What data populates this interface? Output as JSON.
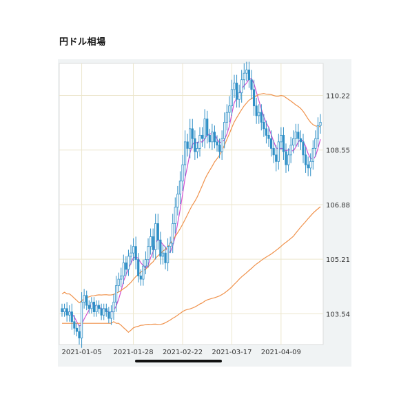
{
  "page": {
    "title": "円ドル相場"
  },
  "chart_data": {
    "type": "candlestick",
    "title": "円ドル相場",
    "xlabel": "",
    "ylabel": "",
    "y_ticks": [
      110.22,
      108.55,
      106.88,
      105.21,
      103.54
    ],
    "ylim": [
      102.6,
      111.2
    ],
    "x_tick_labels": [
      "2021-01-05",
      "2021-01-28",
      "2021-02-22",
      "2021-03-17",
      "2021-04-09"
    ],
    "x_tick_index": [
      8,
      29,
      49,
      69,
      89
    ],
    "n_points": 106,
    "grid": true,
    "colors": {
      "candle": "#2f8fc6",
      "sma_short": "#d04fd0",
      "sma_long": "#f0914a",
      "grid": "#ece6cc"
    },
    "series": [
      {
        "type": "candle",
        "close": [
          103.6,
          103.7,
          103.5,
          103.6,
          103.3,
          103.1,
          103.0,
          102.8,
          103.9,
          104.1,
          103.8,
          103.7,
          103.9,
          103.6,
          103.8,
          103.7,
          103.5,
          103.7,
          103.6,
          103.4,
          103.6,
          103.9,
          104.4,
          104.6,
          104.7,
          105.1,
          104.9,
          105.3,
          105.4,
          105.6,
          105.2,
          104.7,
          104.6,
          105.0,
          105.2,
          105.6,
          105.9,
          105.5,
          106.3,
          105.8,
          105.3,
          105.4,
          105.1,
          105.6,
          105.7,
          106.3,
          106.8,
          107.2,
          107.6,
          108.1,
          108.8,
          108.6,
          109.2,
          108.9,
          108.5,
          108.6,
          109.0,
          108.9,
          109.5,
          109.0,
          108.8,
          109.1,
          108.8,
          108.7,
          108.5,
          108.9,
          109.4,
          109.7,
          109.9,
          110.4,
          110.6,
          110.1,
          110.3,
          110.7,
          110.9,
          111.0,
          110.7,
          110.4,
          109.9,
          109.6,
          109.7,
          109.4,
          109.2,
          109.0,
          108.9,
          108.6,
          108.4,
          108.2,
          108.8,
          109.0,
          108.5,
          108.1,
          108.4,
          108.7,
          108.9,
          109.1,
          108.9,
          108.8,
          108.4,
          108.1,
          108.0,
          108.2,
          108.6,
          108.9,
          109.3,
          109.4
        ],
        "range": [
          0.3,
          0.3,
          0.4,
          0.4,
          0.5,
          0.4,
          0.3,
          0.4,
          0.6,
          0.4,
          0.3,
          0.3,
          0.3,
          0.3,
          0.3,
          0.3,
          0.3,
          0.3,
          0.3,
          0.3,
          0.4,
          0.5,
          0.6,
          0.4,
          0.5,
          0.5,
          0.4,
          0.4,
          0.5,
          0.5,
          0.6,
          0.4,
          0.4,
          0.4,
          0.5,
          0.5,
          0.5,
          0.5,
          0.6,
          0.6,
          0.5,
          0.5,
          0.4,
          0.5,
          0.4,
          0.6,
          0.6,
          0.5,
          0.6,
          0.6,
          0.7,
          0.5,
          0.6,
          0.6,
          0.5,
          0.4,
          0.5,
          0.5,
          0.6,
          0.5,
          0.4,
          0.5,
          0.4,
          0.4,
          0.4,
          0.5,
          0.6,
          0.5,
          0.6,
          0.6,
          0.5,
          0.5,
          0.5,
          0.6,
          0.6,
          0.5,
          0.5,
          0.6,
          0.6,
          0.5,
          0.5,
          0.5,
          0.5,
          0.5,
          0.5,
          0.5,
          0.5,
          0.6,
          0.5,
          0.5,
          0.5,
          0.5,
          0.4,
          0.5,
          0.5,
          0.5,
          0.5,
          0.5,
          0.5,
          0.5,
          0.5,
          0.5,
          0.5,
          0.5,
          0.5,
          0.5
        ]
      },
      {
        "type": "line",
        "color_key": "sma_short",
        "window": 5
      },
      {
        "type": "line",
        "color_key": "sma_long",
        "window": 25,
        "offset": 0.55
      },
      {
        "type": "line",
        "color_key": "sma_long",
        "window": 75,
        "lag": 20
      }
    ]
  }
}
